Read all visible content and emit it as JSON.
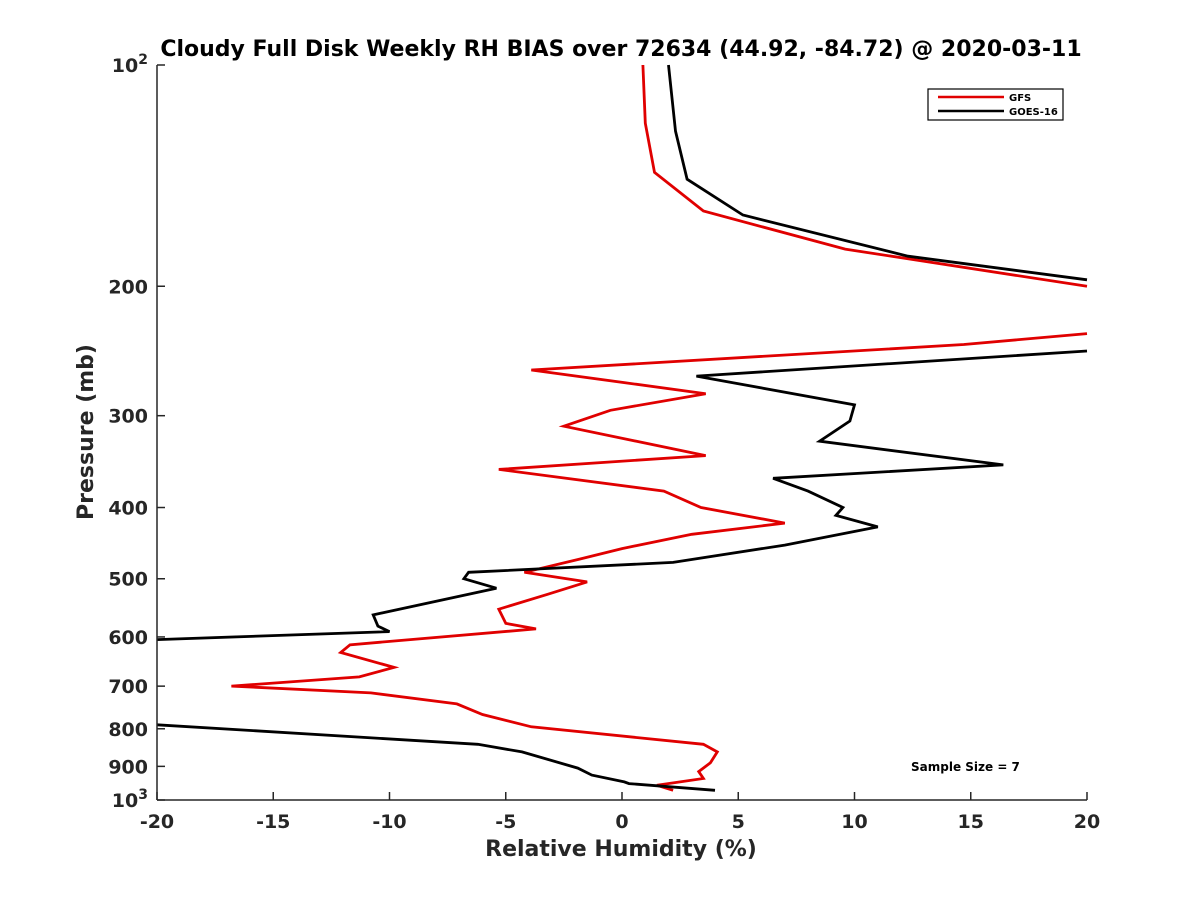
{
  "chart_data": {
    "type": "line",
    "title": "Cloudy Full Disk Weekly RH BIAS over 72634 (44.92, -84.72) @ 2020-03-11",
    "xlabel": "Relative Humidity (%)",
    "ylabel": "Pressure (mb)",
    "xlim": [
      -20,
      20
    ],
    "ylim": [
      100,
      1000
    ],
    "y_scale": "log",
    "y_reversed": true,
    "x_ticks": [
      -20,
      -15,
      -10,
      -5,
      0,
      5,
      10,
      15,
      20
    ],
    "x_tick_labels": [
      "-20",
      "-15",
      "-10",
      "-5",
      "0",
      "5",
      "10",
      "15",
      "20"
    ],
    "y_ticks": [
      100,
      200,
      300,
      400,
      500,
      600,
      700,
      800,
      900,
      1000
    ],
    "y_tick_labels": [
      {
        "base": "10",
        "exp": "2"
      },
      {
        "base": "200",
        "exp": ""
      },
      {
        "base": "300",
        "exp": ""
      },
      {
        "base": "400",
        "exp": ""
      },
      {
        "base": "500",
        "exp": ""
      },
      {
        "base": "600",
        "exp": ""
      },
      {
        "base": "700",
        "exp": ""
      },
      {
        "base": "800",
        "exp": ""
      },
      {
        "base": "900",
        "exp": ""
      },
      {
        "base": "10",
        "exp": "3"
      }
    ],
    "grid": false,
    "legend_position": "top-right",
    "annotation": "Sample Size = 7",
    "series": [
      {
        "name": "GFS",
        "color": "#e00000",
        "points": [
          [
            2.2,
            970
          ],
          [
            1.5,
            955
          ],
          [
            3.5,
            935
          ],
          [
            3.3,
            915
          ],
          [
            3.8,
            890
          ],
          [
            4.1,
            860
          ],
          [
            3.5,
            840
          ],
          [
            -3.9,
            795
          ],
          [
            -6.0,
            765
          ],
          [
            -7.1,
            740
          ],
          [
            -10.8,
            715
          ],
          [
            -16.8,
            700
          ],
          [
            -11.3,
            680
          ],
          [
            -9.8,
            660
          ],
          [
            -12.1,
            630
          ],
          [
            -11.7,
            615
          ],
          [
            -3.7,
            585
          ],
          [
            -5.0,
            575
          ],
          [
            -5.3,
            550
          ],
          [
            -3.2,
            525
          ],
          [
            -1.5,
            505
          ],
          [
            -4.2,
            490
          ],
          [
            -1.8,
            470
          ],
          [
            0.0,
            455
          ],
          [
            3.0,
            435
          ],
          [
            7.0,
            420
          ],
          [
            3.4,
            400
          ],
          [
            1.8,
            380
          ],
          [
            -5.3,
            355
          ],
          [
            3.6,
            340
          ],
          [
            -2.5,
            310
          ],
          [
            -0.5,
            295
          ],
          [
            3.6,
            280
          ],
          [
            -3.9,
            260
          ],
          [
            14.7,
            240
          ],
          [
            20.0,
            232
          ],
          [
            null,
            null
          ],
          [
            20.0,
            200
          ],
          [
            9.6,
            178
          ],
          [
            3.5,
            158
          ],
          [
            1.4,
            140
          ],
          [
            1.0,
            120
          ],
          [
            0.9,
            100
          ]
        ]
      },
      {
        "name": "GOES-16",
        "color": "#000000",
        "points": [
          [
            4.0,
            970
          ],
          [
            0.3,
            950
          ],
          [
            0.1,
            945
          ],
          [
            -1.3,
            925
          ],
          [
            -1.9,
            905
          ],
          [
            -4.3,
            860
          ],
          [
            -6.2,
            840
          ],
          [
            -20.0,
            790
          ],
          [
            null,
            null
          ],
          [
            -20.0,
            605
          ],
          [
            -10.0,
            590
          ],
          [
            -10.5,
            580
          ],
          [
            -10.7,
            560
          ],
          [
            -5.4,
            515
          ],
          [
            -6.8,
            500
          ],
          [
            -6.6,
            490
          ],
          [
            2.2,
            475
          ],
          [
            7.0,
            450
          ],
          [
            11.0,
            425
          ],
          [
            9.2,
            410
          ],
          [
            9.5,
            400
          ],
          [
            8.0,
            380
          ],
          [
            6.5,
            365
          ],
          [
            16.4,
            350
          ],
          [
            8.5,
            325
          ],
          [
            9.8,
            305
          ],
          [
            10.0,
            290
          ],
          [
            3.2,
            265
          ],
          [
            20.0,
            245
          ],
          [
            null,
            null
          ],
          [
            20.0,
            196
          ],
          [
            12.3,
            182
          ],
          [
            5.2,
            160
          ],
          [
            2.8,
            143
          ],
          [
            2.3,
            123
          ],
          [
            2.0,
            100
          ]
        ]
      }
    ]
  }
}
